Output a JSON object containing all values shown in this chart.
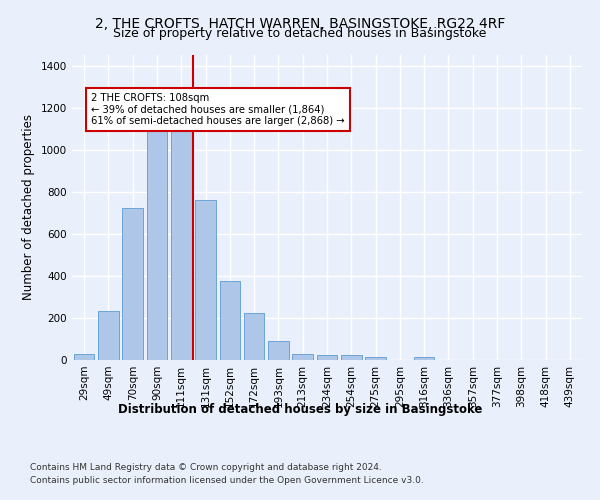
{
  "title1": "2, THE CROFTS, HATCH WARREN, BASINGSTOKE, RG22 4RF",
  "title2": "Size of property relative to detached houses in Basingstoke",
  "xlabel": "Distribution of detached houses by size in Basingstoke",
  "ylabel": "Number of detached properties",
  "categories": [
    "29sqm",
    "49sqm",
    "70sqm",
    "90sqm",
    "111sqm",
    "131sqm",
    "152sqm",
    "172sqm",
    "193sqm",
    "213sqm",
    "234sqm",
    "254sqm",
    "275sqm",
    "295sqm",
    "316sqm",
    "336sqm",
    "357sqm",
    "377sqm",
    "398sqm",
    "418sqm",
    "439sqm"
  ],
  "values": [
    30,
    235,
    725,
    1110,
    1115,
    760,
    375,
    222,
    90,
    30,
    25,
    22,
    16,
    0,
    12,
    0,
    0,
    0,
    0,
    0,
    0
  ],
  "bar_color": "#aec6e8",
  "bar_edge_color": "#5b9bd5",
  "vline_x": 4.5,
  "vline_color": "#cc0000",
  "annotation_text": "2 THE CROFTS: 108sqm\n← 39% of detached houses are smaller (1,864)\n61% of semi-detached houses are larger (2,868) →",
  "annotation_box_color": "#ffffff",
  "annotation_box_edge": "#cc0000",
  "ylim": [
    0,
    1450
  ],
  "yticks": [
    0,
    200,
    400,
    600,
    800,
    1000,
    1200,
    1400
  ],
  "footer1": "Contains HM Land Registry data © Crown copyright and database right 2024.",
  "footer2": "Contains public sector information licensed under the Open Government Licence v3.0.",
  "background_color": "#eaf0fb",
  "plot_background": "#eaf0fb",
  "grid_color": "#ffffff",
  "title_fontsize": 10,
  "subtitle_fontsize": 9,
  "axis_label_fontsize": 8.5,
  "tick_fontsize": 7.5,
  "footer_fontsize": 6.5
}
